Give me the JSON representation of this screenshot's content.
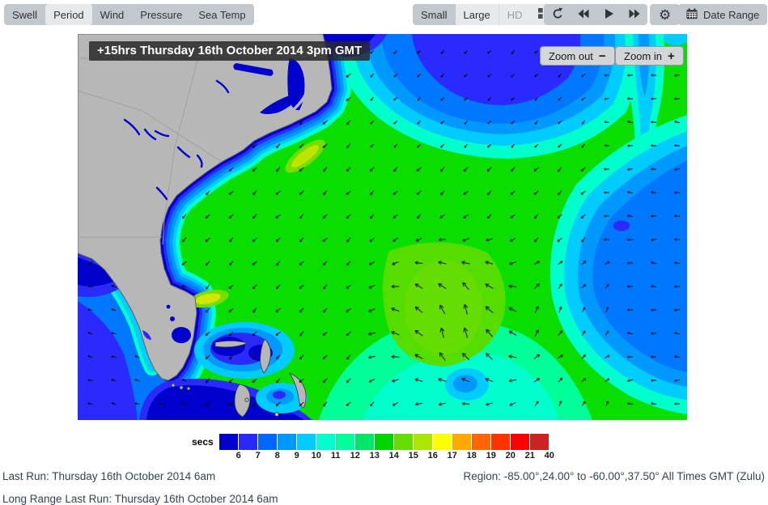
{
  "toolbar": {
    "modes": [
      {
        "label": "Swell",
        "active": false
      },
      {
        "label": "Period",
        "active": true
      },
      {
        "label": "Wind",
        "active": false
      },
      {
        "label": "Pressure",
        "active": false
      },
      {
        "label": "Sea Temp",
        "active": false
      }
    ],
    "sizes": [
      {
        "label": "Small",
        "state": "current"
      },
      {
        "label": "Large",
        "state": "default"
      },
      {
        "label": "HD",
        "state": "disabled"
      }
    ],
    "icons": {
      "grid": "grid-view",
      "refresh": "refresh",
      "rewind": "rewind",
      "play": "play",
      "fast_forward": "fast-forward",
      "settings": "gear",
      "calendar": "calendar"
    },
    "date_range_label": "Date Range"
  },
  "map": {
    "timestamp": "+15hrs Thursday 16th October 2014 3pm GMT",
    "zoom_out": {
      "label": "Zoom out",
      "symbol": "−"
    },
    "zoom_in": {
      "label": "Zoom in",
      "symbol": "+"
    },
    "land_color": "#b7b7b7",
    "arrow_color": "#0a0a0a"
  },
  "legend": {
    "unit": "secs",
    "ticks": [
      "6",
      "7",
      "8",
      "9",
      "10",
      "11",
      "12",
      "13",
      "14",
      "15",
      "16",
      "17",
      "18",
      "19",
      "20",
      "21",
      "40"
    ],
    "colors": [
      "#0000cc",
      "#2929ff",
      "#0066ff",
      "#0099ff",
      "#00ccff",
      "#00ffcc",
      "#00ff99",
      "#00e666",
      "#00d500",
      "#66dd00",
      "#aae600",
      "#ffff00",
      "#ffaa00",
      "#ff6600",
      "#ff3300",
      "#ff0000",
      "#cc2222"
    ]
  },
  "status": {
    "last_run": "Last Run: Thursday 16th October 2014 6am",
    "region": "Region: -85.00°,24.00° to -60.00°,37.50° All Times GMT (Zulu)",
    "long_range_last_run": "Long Range Last Run: Thursday 16th October 2014 6am"
  }
}
